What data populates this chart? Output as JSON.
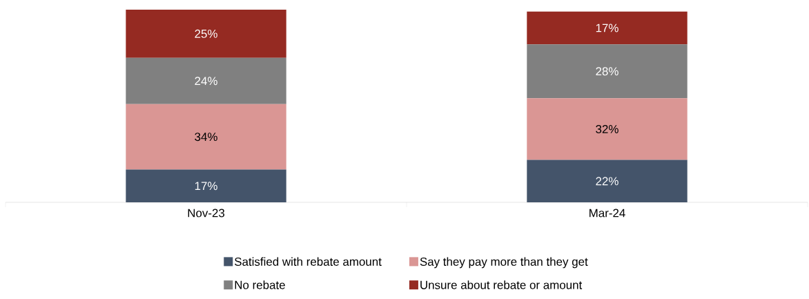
{
  "chart_data": {
    "type": "bar",
    "stacked": true,
    "categories": [
      "Nov-23",
      "Mar-24"
    ],
    "series": [
      {
        "name": "Satisfied with rebate amount",
        "color": "#44546a",
        "values": [
          17,
          22
        ],
        "value_labels": [
          "17%",
          "22%"
        ]
      },
      {
        "name": "Say they pay more than they get",
        "color": "#da9694",
        "values": [
          34,
          32
        ],
        "value_labels": [
          "34%",
          "32%"
        ]
      },
      {
        "name": "No rebate",
        "color": "#808080",
        "values": [
          24,
          28
        ],
        "value_labels": [
          "24%",
          "28%"
        ]
      },
      {
        "name": "Unsure about rebate or amount",
        "color": "#952a22",
        "values": [
          25,
          17
        ],
        "value_labels": [
          "25%",
          "17%"
        ]
      }
    ],
    "legend": "bottom",
    "data_labels": true
  }
}
